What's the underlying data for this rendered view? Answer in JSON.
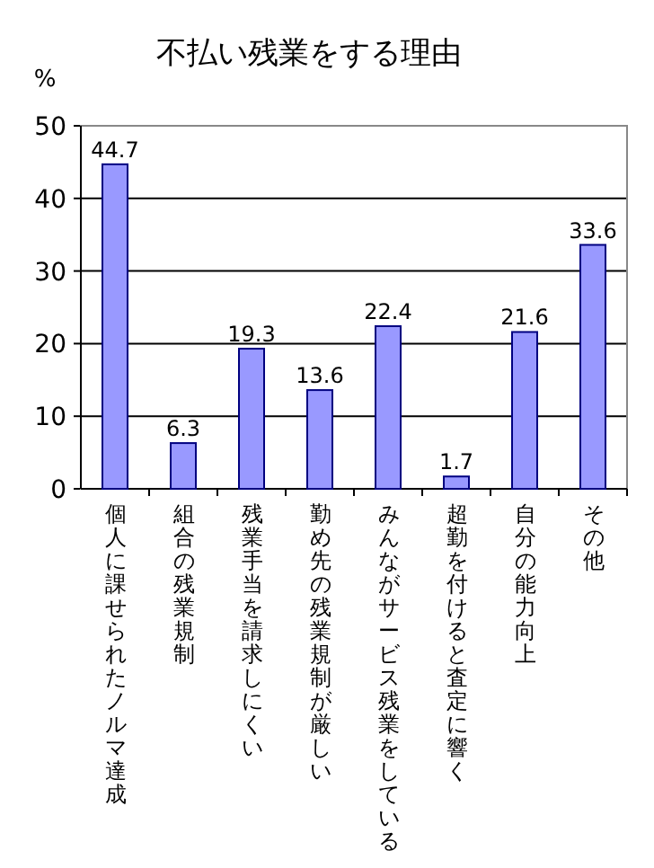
{
  "chart_data": {
    "type": "bar",
    "title": "不払い残業をする理由",
    "ylabel": "%",
    "categories": [
      "個人に課せられたノルマ達成",
      "組合の残業規制",
      "残業手当を請求しにくい",
      "勤め先の残業規制が厳しい",
      "みんながサービス残業をしている",
      "超勤を付けると査定に響く",
      "自分の能力向上",
      "その他"
    ],
    "values": [
      44.7,
      6.3,
      19.3,
      13.6,
      22.4,
      1.7,
      21.6,
      33.6
    ],
    "color": "#9999ff",
    "ylim": [
      0,
      50
    ],
    "yticks": [
      0,
      10,
      20,
      30,
      40,
      50
    ],
    "grid": "y",
    "data_labels": true
  }
}
